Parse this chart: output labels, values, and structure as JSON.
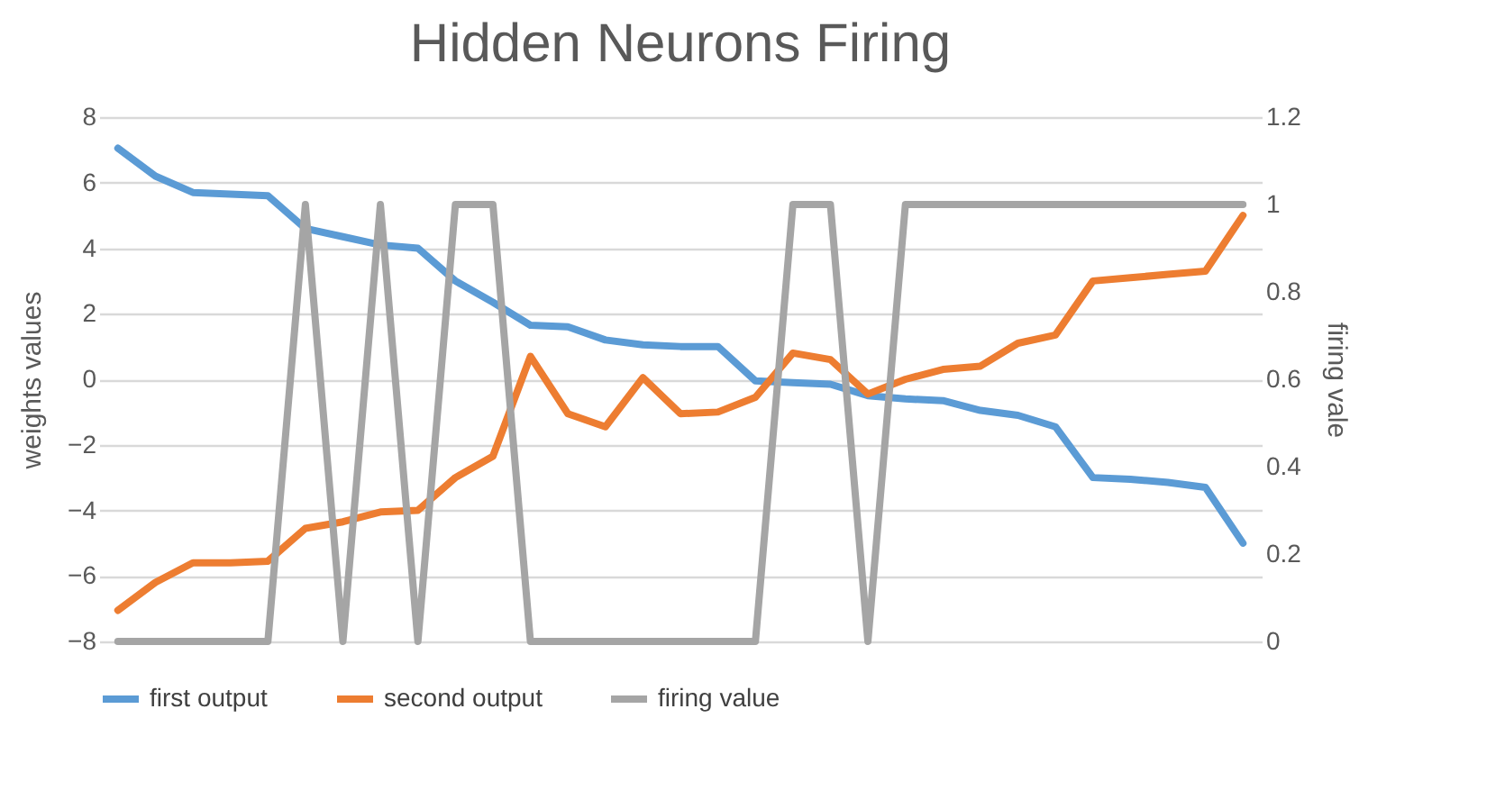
{
  "chart_data": {
    "type": "line",
    "title": "Hidden Neurons Firing",
    "ylabel": "weights values",
    "y2label": "firing vale",
    "categories": [
      null,
      null,
      null,
      null,
      null,
      null,
      null,
      null,
      null,
      null,
      null,
      null,
      null,
      null,
      null,
      null,
      null,
      null,
      null,
      null,
      null,
      null,
      null,
      null,
      null,
      null,
      null,
      null,
      null,
      null,
      null
    ],
    "series": [
      {
        "name": "first output",
        "color": "#5b9bd5",
        "values": [
          7.05,
          6.2,
          5.7,
          5.65,
          5.6,
          4.6,
          4.35,
          4.1,
          4.0,
          3.0,
          2.35,
          1.65,
          1.6,
          1.2,
          1.05,
          1.0,
          1.0,
          -0.05,
          -0.1,
          -0.15,
          -0.5,
          -0.6,
          -0.65,
          -0.95,
          -1.1,
          -1.45,
          -3.0,
          -3.05,
          -3.15,
          -3.3,
          -5.0
        ]
      },
      {
        "name": "second output",
        "color": "#ed7d31",
        "values": [
          -7.05,
          -6.2,
          -5.6,
          -5.6,
          -5.55,
          -4.55,
          -4.35,
          -4.05,
          -4.0,
          -3.0,
          -2.35,
          0.7,
          -1.05,
          -1.45,
          0.05,
          -1.05,
          -1.0,
          -0.55,
          0.8,
          0.6,
          -0.45,
          0.0,
          0.3,
          0.4,
          1.1,
          1.35,
          3.0,
          3.1,
          3.2,
          3.3,
          5.0
        ]
      },
      {
        "name": "firing value",
        "color": "#a5a5a5",
        "axis": "y2",
        "values": [
          0,
          0,
          0,
          0,
          0,
          1,
          0,
          1,
          0,
          1,
          1,
          0,
          0,
          0,
          0,
          0,
          0,
          0,
          1,
          1,
          0,
          1,
          1,
          1,
          1,
          1,
          1,
          1,
          1,
          1,
          1
        ]
      }
    ],
    "ylim": [
      -8,
      8
    ],
    "yticks": [
      -8,
      -6,
      -4,
      -2,
      0,
      2,
      4,
      6,
      8
    ],
    "y2lim": [
      0,
      1.2
    ],
    "y2ticks": [
      0,
      0.2,
      0.4,
      0.6,
      0.8,
      1,
      1.2
    ],
    "grid": "y",
    "legend": "bottom",
    "marker": "none",
    "line_style": "solid",
    "tick_labels": "y"
  }
}
